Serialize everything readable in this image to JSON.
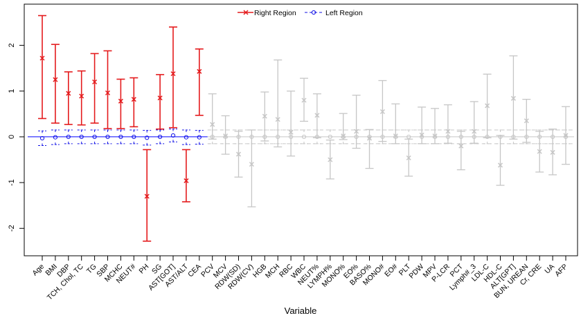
{
  "chart_data": {
    "type": "scatter",
    "title": "",
    "xlabel": "Variable",
    "ylabel": "",
    "ylim": [
      -2.6,
      2.9
    ],
    "yticks": [
      -2,
      -1,
      0,
      1,
      2
    ],
    "grid": false,
    "legend_position": "top-center",
    "categories": [
      "Age",
      "BMI",
      "DBP",
      "TCH, Chol, TC",
      "TG",
      "SBP",
      "MCHC",
      "NEUT#",
      "PH",
      "SG",
      "AST[GOT]",
      "AST/ALT",
      "CEA",
      "PCV",
      "MCV",
      "RDW(SD)",
      "RDW(CV)",
      "HGB",
      "MCH",
      "RBC",
      "WBC",
      "NEUT%",
      "LYMPH%",
      "MONO%",
      "EO%",
      "BASO%",
      "MONO#",
      "EO#",
      "PLT",
      "PDW",
      "MPV",
      "P-LCR",
      "PCT",
      "Lymph#_3",
      "LDL-C",
      "HDL-C",
      "ALT[GPT]",
      "BUN, UREAN",
      "Cr, CRE",
      "UA",
      "AFP"
    ],
    "series": [
      {
        "name": "Right Region",
        "marker": "x",
        "color": "#e41a1c",
        "significant_color": "#e41a1c",
        "nonsignificant_color": "#c6c6c6",
        "significant_count": 13,
        "values": [
          1.72,
          1.25,
          0.95,
          0.89,
          1.2,
          0.96,
          0.78,
          0.82,
          -1.3,
          0.85,
          1.38,
          -0.96,
          1.43,
          0.27,
          0.02,
          -0.38,
          -0.6,
          0.45,
          0.38,
          0.1,
          0.8,
          0.47,
          -0.5,
          0.02,
          0.12,
          -0.03,
          0.55,
          0.02,
          -0.46,
          0.04,
          0.02,
          0.12,
          -0.2,
          0.12,
          0.68,
          -0.62,
          0.84,
          0.35,
          -0.32,
          -0.34,
          0.03
        ],
        "upper": [
          2.65,
          2.02,
          1.42,
          1.44,
          1.82,
          1.88,
          1.26,
          1.29,
          -0.28,
          1.36,
          2.4,
          -0.28,
          1.92,
          0.94,
          0.46,
          0.12,
          0.15,
          0.98,
          1.68,
          1.0,
          1.28,
          0.94,
          -0.07,
          0.51,
          0.91,
          0.16,
          1.23,
          0.72,
          -0.05,
          0.65,
          0.62,
          0.7,
          0.12,
          0.77,
          1.37,
          0.03,
          1.77,
          0.82,
          0.12,
          0.17,
          0.66
        ],
        "lower": [
          0.4,
          0.3,
          0.27,
          0.26,
          0.3,
          0.18,
          0.18,
          0.22,
          -2.28,
          0.17,
          0.2,
          -1.42,
          0.47,
          -0.05,
          -0.38,
          -0.88,
          -1.53,
          -0.09,
          -0.22,
          -0.42,
          0.34,
          -0.02,
          -0.92,
          -0.06,
          -0.25,
          -0.69,
          -0.1,
          -0.15,
          -0.86,
          -0.15,
          -0.15,
          -0.14,
          -0.72,
          -0.14,
          -0.02,
          -1.06,
          -0.05,
          -0.12,
          -0.77,
          -0.83,
          -0.6
        ]
      },
      {
        "name": "Left Region",
        "marker": "circle",
        "color": "#1010e6",
        "significant_color": "#1010e6",
        "nonsignificant_color": "#c6c6c6",
        "significant_count": 13,
        "values": [
          -0.03,
          -0.01,
          0.0,
          0.0,
          0.0,
          0.0,
          0.0,
          0.0,
          -0.02,
          0.0,
          0.03,
          -0.01,
          -0.01,
          0.0,
          0.0,
          0.0,
          0.0,
          0.0,
          0.0,
          0.0,
          0.0,
          0.0,
          0.0,
          0.0,
          0.0,
          0.0,
          0.0,
          0.0,
          0.0,
          0.0,
          0.0,
          0.0,
          0.0,
          0.0,
          0.0,
          0.0,
          0.0,
          0.0,
          0.0,
          0.0,
          0.0
        ],
        "upper": [
          0.13,
          0.15,
          0.15,
          0.15,
          0.15,
          0.15,
          0.15,
          0.15,
          0.14,
          0.15,
          0.17,
          0.15,
          0.14,
          0.15,
          0.15,
          0.15,
          0.15,
          0.15,
          0.15,
          0.15,
          0.15,
          0.15,
          0.15,
          0.15,
          0.15,
          0.15,
          0.15,
          0.15,
          0.15,
          0.15,
          0.15,
          0.15,
          0.15,
          0.15,
          0.15,
          0.15,
          0.15,
          0.15,
          0.15,
          0.15,
          0.15
        ],
        "lower": [
          -0.19,
          -0.17,
          -0.15,
          -0.15,
          -0.15,
          -0.15,
          -0.15,
          -0.15,
          -0.18,
          -0.15,
          -0.11,
          -0.17,
          -0.16,
          -0.15,
          -0.15,
          -0.15,
          -0.15,
          -0.15,
          -0.15,
          -0.15,
          -0.15,
          -0.15,
          -0.15,
          -0.15,
          -0.15,
          -0.15,
          -0.15,
          -0.15,
          -0.15,
          -0.15,
          -0.15,
          -0.15,
          -0.15,
          -0.15,
          -0.15,
          -0.15,
          -0.15,
          -0.15,
          -0.15,
          -0.15,
          -0.15
        ]
      }
    ],
    "reference_line": {
      "y": 0,
      "color": "#0000ff",
      "significant_count": 13,
      "rest_color": "#c6c6c6"
    }
  }
}
